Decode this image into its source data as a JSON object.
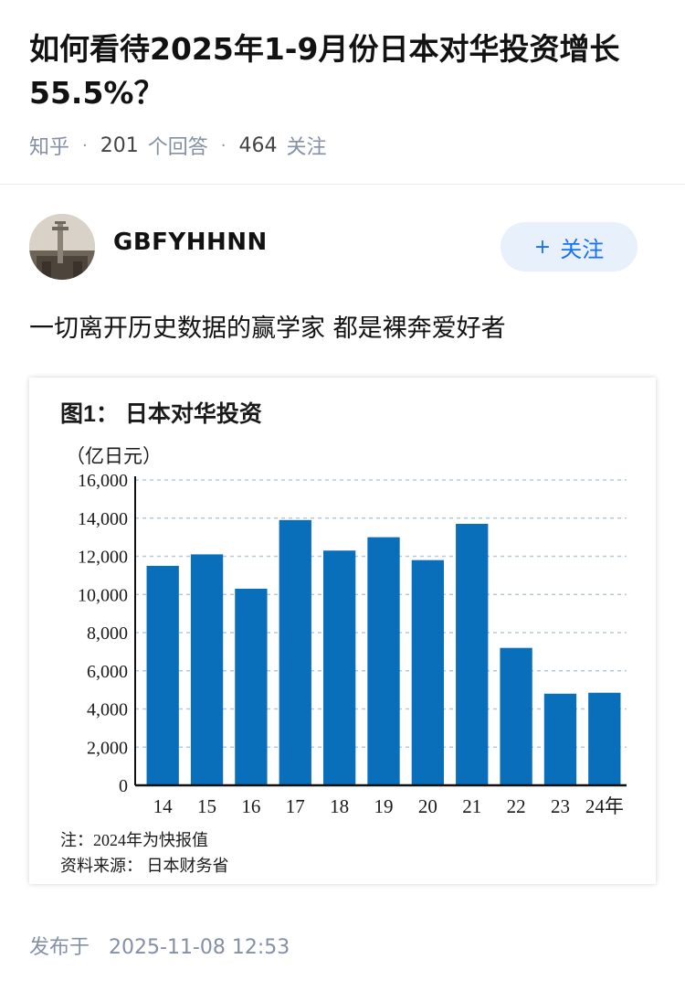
{
  "question": {
    "title": "如何看待2025年1-9月份日本对华投资增长55.5%？",
    "source": "知乎",
    "answer_count": "201",
    "answer_label": "个回答",
    "follower_count": "464",
    "follower_label": "关注"
  },
  "author": {
    "name": "GBFYHHNN",
    "follow_label": "关注"
  },
  "answer": {
    "text": "一切离开历史数据的赢学家 都是裸奔爱好者"
  },
  "publish": {
    "label": "发布于",
    "datetime": "2025-11-08 12:53"
  },
  "colors": {
    "bar": "#0a6fbb",
    "accent": "#1772f6",
    "meta": "#8590a6"
  },
  "icons": [
    "plus-icon",
    "avatar-image"
  ],
  "chart_data": {
    "type": "bar",
    "title": "图1： 日本对华投资",
    "ylabel": "（亿日元）",
    "xlabel": "",
    "categories": [
      "14",
      "15",
      "16",
      "17",
      "18",
      "19",
      "20",
      "21",
      "22",
      "23",
      "24年"
    ],
    "values": [
      11500,
      12100,
      10300,
      13900,
      12300,
      13000,
      11800,
      13700,
      7200,
      4800,
      4850
    ],
    "ylim": [
      0,
      16000
    ],
    "yticks": [
      0,
      2000,
      4000,
      6000,
      8000,
      10000,
      12000,
      14000,
      16000
    ],
    "ytick_labels": [
      "0",
      "2,000",
      "4,000",
      "6,000",
      "8,000",
      "10,000",
      "12,000",
      "14,000",
      "16,000"
    ],
    "grid": true,
    "legend": "none",
    "notes": [
      "注：2024年为快报值",
      "资料来源：  日本财务省"
    ]
  }
}
